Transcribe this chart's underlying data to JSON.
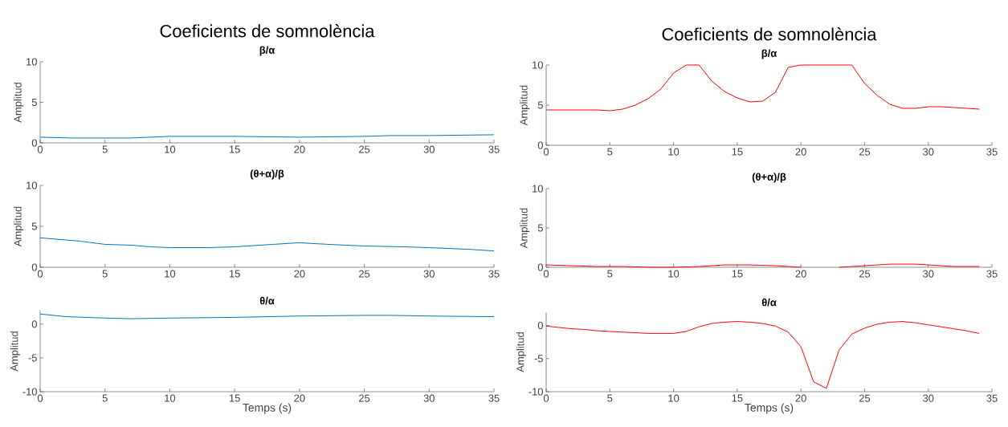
{
  "chart_data": [
    {
      "type": "line",
      "title": "β/α",
      "ylabel": "Amplitud",
      "annotations": [
        "Coeficients de somnolència"
      ],
      "x": [
        0,
        2.5,
        5,
        7,
        10,
        13.5,
        15,
        20,
        25,
        27,
        30,
        35
      ],
      "xlim": [
        0,
        35
      ],
      "ylim": [
        0,
        10
      ],
      "xticks": [
        0,
        5,
        10,
        15,
        20,
        25,
        30,
        35
      ],
      "yticks": [
        0,
        5,
        10
      ],
      "series": [
        {
          "color": "#0072bd",
          "values": [
            0.7,
            0.6,
            0.6,
            0.6,
            0.8,
            0.8,
            0.8,
            0.7,
            0.8,
            0.9,
            0.9,
            1.0
          ]
        }
      ]
    },
    {
      "type": "line",
      "title": "(θ+α)/β",
      "ylabel": "Amplitud",
      "x": [
        0,
        3,
        5,
        7,
        8.5,
        10,
        13,
        15,
        18,
        20,
        21,
        23.5,
        25,
        28,
        30,
        33,
        35
      ],
      "xlim": [
        0,
        35
      ],
      "ylim": [
        0,
        10
      ],
      "xticks": [
        0,
        5,
        10,
        15,
        20,
        25,
        30,
        35
      ],
      "yticks": [
        0,
        5,
        10
      ],
      "series": [
        {
          "color": "#0072bd",
          "values": [
            3.6,
            3.2,
            2.8,
            2.7,
            2.5,
            2.4,
            2.4,
            2.5,
            2.8,
            3.0,
            2.9,
            2.7,
            2.6,
            2.5,
            2.4,
            2.2,
            2.0
          ]
        }
      ]
    },
    {
      "type": "line",
      "title": "θ/α",
      "ylabel": "Amplitud",
      "xlabel": "Temps (s)",
      "x": [
        0,
        2,
        5,
        7,
        10,
        15,
        20,
        25,
        27,
        30,
        35
      ],
      "xlim": [
        0,
        35
      ],
      "ylim": [
        -10,
        2
      ],
      "xticks": [
        0,
        5,
        10,
        15,
        20,
        25,
        30,
        35
      ],
      "yticks": [
        -10,
        -5,
        0
      ],
      "series": [
        {
          "color": "#0072bd",
          "values": [
            1.5,
            1.1,
            0.9,
            0.8,
            0.9,
            1.0,
            1.2,
            1.3,
            1.3,
            1.2,
            1.1
          ]
        }
      ]
    },
    {
      "type": "line",
      "title": "β/α",
      "ylabel": "Amplitud",
      "annotations": [
        "Coeficients de somnolència"
      ],
      "x": [
        0,
        1,
        2,
        3,
        4,
        5,
        6,
        7,
        8,
        9,
        10,
        11,
        12,
        13,
        14,
        15,
        16,
        17,
        18,
        19,
        20,
        21,
        22,
        23,
        24,
        25,
        26,
        27,
        28,
        29,
        30,
        31,
        32,
        33,
        34
      ],
      "xlim": [
        0,
        35
      ],
      "ylim": [
        0,
        10
      ],
      "xticks": [
        0,
        5,
        10,
        15,
        20,
        25,
        30,
        35
      ],
      "yticks": [
        0,
        5,
        10
      ],
      "series": [
        {
          "color": "#ff0000",
          "values": [
            4.4,
            4.4,
            4.4,
            4.4,
            4.4,
            4.3,
            4.5,
            5.0,
            5.8,
            7.0,
            9.0,
            10,
            10,
            8.0,
            6.7,
            5.9,
            5.4,
            5.5,
            6.6,
            9.7,
            10,
            10,
            10,
            10,
            10,
            7.7,
            6.2,
            5.1,
            4.6,
            4.6,
            4.8,
            4.8,
            4.7,
            4.6,
            4.5
          ]
        }
      ]
    },
    {
      "type": "line",
      "title": "(θ+α)/β",
      "ylabel": "Amplitud",
      "x": [
        0,
        2,
        4,
        6,
        8,
        10,
        12,
        14,
        16,
        18,
        19,
        20,
        21,
        22,
        23,
        24,
        25,
        26,
        27,
        28,
        29,
        30,
        31,
        32,
        33,
        34
      ],
      "xlim": [
        0,
        35
      ],
      "ylim": [
        0,
        10
      ],
      "xticks": [
        0,
        5,
        10,
        15,
        20,
        25,
        30,
        35
      ],
      "yticks": [
        0,
        5,
        10
      ],
      "series": [
        {
          "color": "#ff0000",
          "values": [
            0.3,
            0.2,
            0.1,
            0.1,
            0.0,
            0.0,
            0.1,
            0.3,
            0.3,
            0.2,
            0.1,
            0.0,
            null,
            null,
            0.0,
            0.1,
            0.2,
            0.3,
            0.4,
            0.4,
            0.4,
            0.3,
            0.2,
            0.1,
            0.1,
            0.1
          ]
        }
      ]
    },
    {
      "type": "line",
      "title": "θ/α",
      "ylabel": "Amplitud",
      "xlabel": "Temps (s)",
      "x": [
        0,
        1,
        2,
        3,
        4,
        5,
        6,
        7,
        8,
        9,
        10,
        11,
        12,
        13,
        14,
        15,
        16,
        17,
        18,
        19,
        20,
        21,
        22,
        23,
        24,
        25,
        26,
        27,
        28,
        29,
        30,
        31,
        32,
        33,
        34
      ],
      "xlim": [
        0,
        35
      ],
      "ylim": [
        -10,
        2
      ],
      "xticks": [
        0,
        5,
        10,
        15,
        20,
        25,
        30,
        35
      ],
      "yticks": [
        -10,
        -5,
        0
      ],
      "series": [
        {
          "color": "#ff0000",
          "values": [
            -0.1,
            -0.3,
            -0.5,
            -0.6,
            -0.8,
            -0.9,
            -1.0,
            -1.1,
            -1.2,
            -1.2,
            -1.2,
            -0.9,
            -0.2,
            0.3,
            0.5,
            0.6,
            0.5,
            0.3,
            -0.1,
            -1.0,
            -3.2,
            -8.5,
            -9.5,
            -3.7,
            -1.3,
            -0.4,
            0.2,
            0.5,
            0.6,
            0.4,
            0.1,
            -0.2,
            -0.5,
            -0.8,
            -1.2
          ]
        }
      ]
    }
  ]
}
